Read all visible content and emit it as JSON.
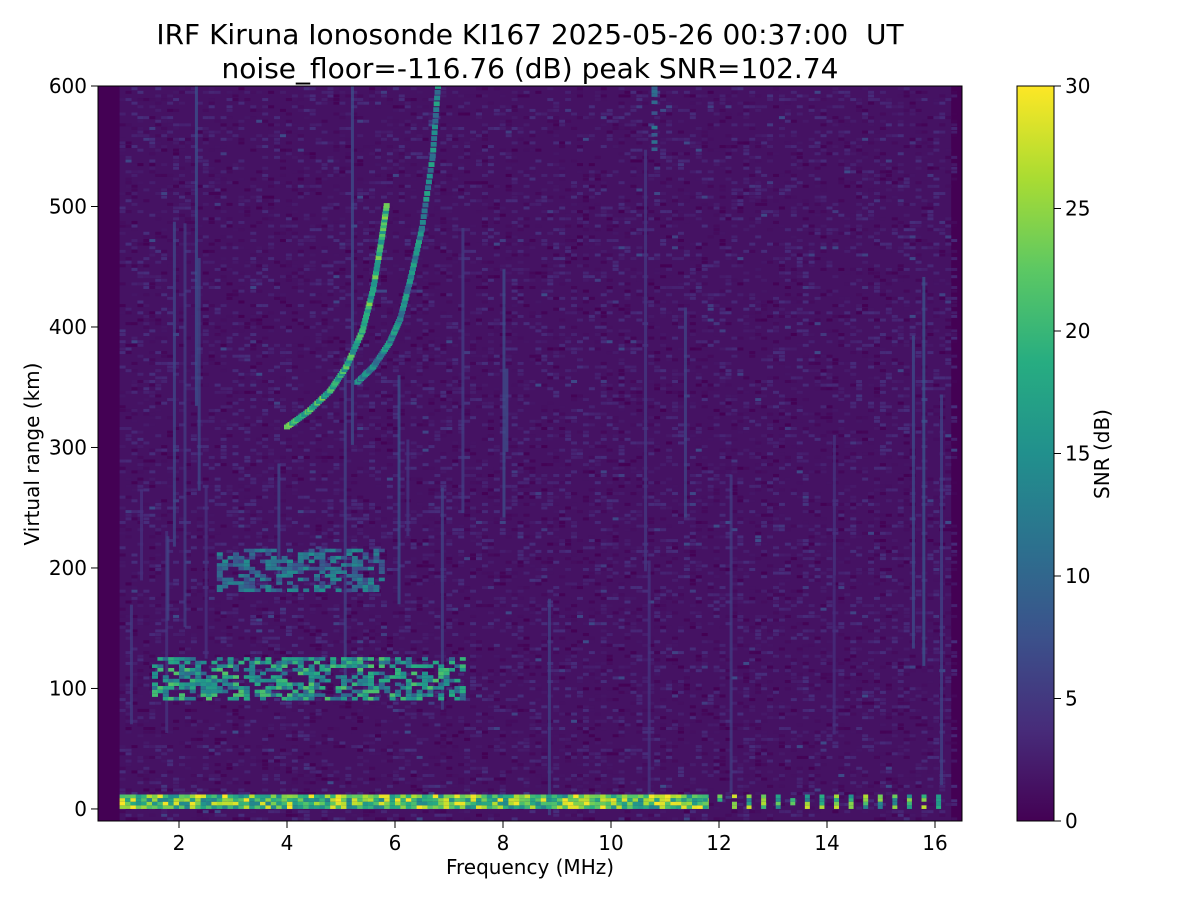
{
  "chart_data": {
    "type": "heatmap",
    "title": "IRF Kiruna Ionosonde KI167 2025-05-26 00:37:00  UT",
    "subtitle": "noise_floor=-116.76 (dB) peak SNR=102.74",
    "xlabel": "Frequency (MHz)",
    "ylabel": "Virtual range (km)",
    "colorbar_label": "SNR (dB)",
    "colormap": "viridis",
    "xlim": [
      0.5,
      16.5
    ],
    "ylim": [
      -10,
      600
    ],
    "clim": [
      0,
      30
    ],
    "data_frequency_range_mhz": [
      0.9,
      16.3
    ],
    "x_ticks": [
      2,
      4,
      6,
      8,
      10,
      12,
      14,
      16
    ],
    "y_ticks": [
      0,
      100,
      200,
      300,
      400,
      500,
      600
    ],
    "colorbar_ticks": [
      0,
      5,
      10,
      15,
      20,
      25,
      30
    ],
    "background_noise_snr_db": [
      0,
      4
    ],
    "traces": [
      {
        "name": "ground-range-band",
        "x": [
          0.9,
          11.7
        ],
        "y": [
          0,
          10
        ],
        "snr": 30
      },
      {
        "name": "sparse-channels-ground-band",
        "x": [
          11.7,
          16.2
        ],
        "y": [
          0,
          10
        ],
        "snr": 28
      },
      {
        "name": "E-layer-echo",
        "x": [
          1.5,
          7.2
        ],
        "y": [
          90,
          125
        ],
        "snr": 22
      },
      {
        "name": "E-layer-second-hop",
        "x": [
          2.7,
          5.7
        ],
        "y": [
          180,
          215
        ],
        "snr": 15
      },
      {
        "name": "F-layer-trace-ordinary",
        "points": [
          [
            4.0,
            315
          ],
          [
            4.4,
            328
          ],
          [
            4.8,
            345
          ],
          [
            5.1,
            365
          ],
          [
            5.4,
            395
          ],
          [
            5.6,
            430
          ],
          [
            5.75,
            470
          ],
          [
            5.85,
            500
          ]
        ],
        "snr": 25
      },
      {
        "name": "F-layer-trace-extraordinary",
        "points": [
          [
            5.3,
            352
          ],
          [
            5.6,
            365
          ],
          [
            5.9,
            385
          ],
          [
            6.1,
            405
          ],
          [
            6.3,
            440
          ],
          [
            6.5,
            480
          ],
          [
            6.7,
            540
          ],
          [
            6.8,
            600
          ]
        ],
        "snr": 18
      },
      {
        "name": "interference-line-10.8MHz",
        "x": [
          10.75,
          10.85
        ],
        "y": [
          540,
          600
        ],
        "snr": 14
      }
    ]
  }
}
